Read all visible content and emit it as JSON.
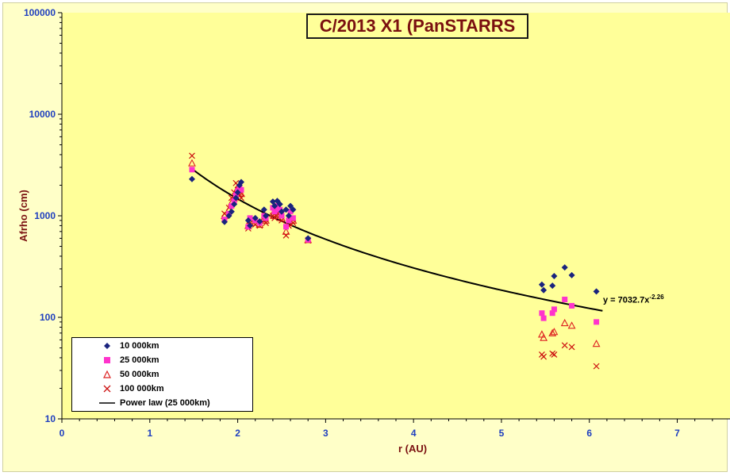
{
  "chart_data": {
    "type": "scatter",
    "title": "C/2013 X1 (PanSTARRS",
    "xlabel": "r (AU)",
    "ylabel": "Afrho (cm)",
    "xlim": [
      0,
      7.6
    ],
    "ylim": [
      10,
      100000
    ],
    "yscale": "log",
    "x_ticks": [
      "0",
      "1",
      "2",
      "3",
      "4",
      "5",
      "6",
      "7"
    ],
    "y_ticks": [
      "10",
      "100",
      "1000",
      "10000",
      "100000"
    ],
    "grid": false,
    "legend_position": "bottom-left",
    "series": [
      {
        "name": "10 000km",
        "marker": "diamond",
        "color": "#1a237e",
        "points": [
          [
            1.48,
            2300
          ],
          [
            1.85,
            870
          ],
          [
            1.9,
            1000
          ],
          [
            1.93,
            1100
          ],
          [
            1.96,
            1300
          ],
          [
            1.98,
            1500
          ],
          [
            2.0,
            1700
          ],
          [
            2.02,
            2000
          ],
          [
            2.04,
            2150
          ],
          [
            2.12,
            900
          ],
          [
            2.14,
            800
          ],
          [
            2.2,
            950
          ],
          [
            2.25,
            880
          ],
          [
            2.3,
            1150
          ],
          [
            2.32,
            1000
          ],
          [
            2.4,
            1380
          ],
          [
            2.42,
            1250
          ],
          [
            2.45,
            1400
          ],
          [
            2.48,
            1300
          ],
          [
            2.5,
            1100
          ],
          [
            2.55,
            1150
          ],
          [
            2.58,
            1000
          ],
          [
            2.6,
            1250
          ],
          [
            2.63,
            1150
          ],
          [
            2.8,
            600
          ],
          [
            5.46,
            210
          ],
          [
            5.48,
            185
          ],
          [
            5.58,
            205
          ],
          [
            5.6,
            255
          ],
          [
            5.72,
            310
          ],
          [
            5.8,
            260
          ],
          [
            6.08,
            180
          ]
        ]
      },
      {
        "name": "25 000km",
        "color": "#ff33cc",
        "marker": "square",
        "points": [
          [
            1.48,
            2850
          ],
          [
            1.85,
            920
          ],
          [
            1.9,
            1050
          ],
          [
            1.93,
            1250
          ],
          [
            1.96,
            1400
          ],
          [
            1.98,
            1600
          ],
          [
            2.0,
            1750
          ],
          [
            2.02,
            1900
          ],
          [
            2.04,
            1800
          ],
          [
            2.12,
            780
          ],
          [
            2.14,
            950
          ],
          [
            2.2,
            900
          ],
          [
            2.25,
            850
          ],
          [
            2.3,
            1000
          ],
          [
            2.32,
            950
          ],
          [
            2.4,
            1200
          ],
          [
            2.42,
            1100
          ],
          [
            2.45,
            1250
          ],
          [
            2.48,
            1150
          ],
          [
            2.5,
            1000
          ],
          [
            2.55,
            780
          ],
          [
            2.58,
            900
          ],
          [
            2.6,
            1100
          ],
          [
            2.63,
            950
          ],
          [
            2.8,
            580
          ],
          [
            5.46,
            110
          ],
          [
            5.48,
            98
          ],
          [
            5.58,
            110
          ],
          [
            5.6,
            120
          ],
          [
            5.72,
            150
          ],
          [
            5.8,
            130
          ],
          [
            6.08,
            90
          ]
        ]
      },
      {
        "name": "50 000km",
        "color": "#dd2222",
        "marker": "triangle",
        "points": [
          [
            1.48,
            3300
          ],
          [
            1.85,
            1000
          ],
          [
            1.9,
            1150
          ],
          [
            1.93,
            1350
          ],
          [
            1.96,
            1500
          ],
          [
            1.98,
            1750
          ],
          [
            2.0,
            1850
          ],
          [
            2.02,
            1700
          ],
          [
            2.04,
            1650
          ],
          [
            2.12,
            800
          ],
          [
            2.14,
            900
          ],
          [
            2.2,
            860
          ],
          [
            2.25,
            820
          ],
          [
            2.3,
            950
          ],
          [
            2.32,
            900
          ],
          [
            2.4,
            1050
          ],
          [
            2.42,
            1000
          ],
          [
            2.45,
            1150
          ],
          [
            2.48,
            1050
          ],
          [
            2.5,
            950
          ],
          [
            2.55,
            700
          ],
          [
            2.58,
            850
          ],
          [
            2.6,
            950
          ],
          [
            2.63,
            900
          ],
          [
            2.8,
            580
          ],
          [
            5.46,
            68
          ],
          [
            5.48,
            63
          ],
          [
            5.58,
            70
          ],
          [
            5.6,
            72
          ],
          [
            5.72,
            88
          ],
          [
            5.8,
            83
          ],
          [
            6.08,
            55
          ]
        ]
      },
      {
        "name": "100 000km",
        "color": "#cc1111",
        "marker": "x",
        "points": [
          [
            1.48,
            3900
          ],
          [
            1.85,
            1050
          ],
          [
            1.9,
            1200
          ],
          [
            1.93,
            1500
          ],
          [
            1.96,
            1700
          ],
          [
            1.98,
            2100
          ],
          [
            2.0,
            2000
          ],
          [
            2.02,
            1600
          ],
          [
            2.04,
            1500
          ],
          [
            2.12,
            750
          ],
          [
            2.14,
            850
          ],
          [
            2.2,
            820
          ],
          [
            2.25,
            800
          ],
          [
            2.3,
            900
          ],
          [
            2.32,
            850
          ],
          [
            2.4,
            1000
          ],
          [
            2.42,
            950
          ],
          [
            2.45,
            1050
          ],
          [
            2.48,
            1000
          ],
          [
            2.5,
            900
          ],
          [
            2.55,
            640
          ],
          [
            2.58,
            800
          ],
          [
            2.6,
            900
          ],
          [
            2.63,
            850
          ],
          [
            2.8,
            570
          ],
          [
            5.46,
            43
          ],
          [
            5.48,
            41
          ],
          [
            5.58,
            44
          ],
          [
            5.6,
            43
          ],
          [
            5.72,
            53
          ],
          [
            5.8,
            51
          ],
          [
            6.08,
            33
          ]
        ]
      }
    ],
    "fit": {
      "name": "Power law (25 000km)",
      "color": "#000000",
      "coefficient": 7032.7,
      "exponent": -2.26,
      "x_range": [
        1.48,
        6.15
      ],
      "equation_prefix": "y = 7032.7x",
      "equation_exponent": "-2.26"
    }
  }
}
